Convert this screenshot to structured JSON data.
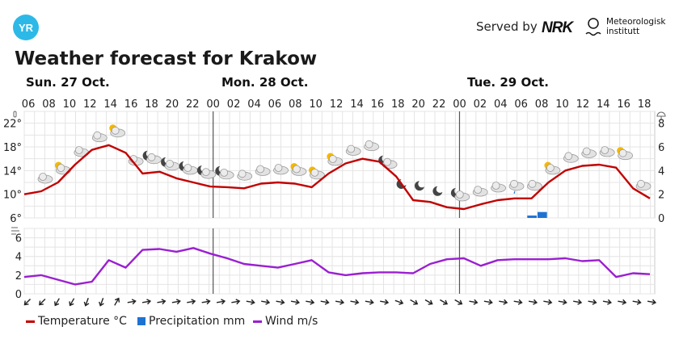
{
  "header": {
    "brand": "YR",
    "served_by": "Served by",
    "partner_logo": "NRK",
    "partner2_line1": "Meteorologisk",
    "partner2_line2": "institutt"
  },
  "title": "Weather forecast for Krakow",
  "days": [
    {
      "label": "Sun. 27 Oct."
    },
    {
      "label": "Mon. 28 Oct."
    },
    {
      "label": "Tue. 29 Oct."
    }
  ],
  "icons_meta": {
    "temperature_axis_icon": "thermometer-icon",
    "precip_axis_icon": "umbrella-icon",
    "wind_axis_icon": "wind-icon"
  },
  "legend": {
    "temperature": "Temperature °C",
    "precipitation": "Precipitation mm",
    "wind": "Wind m/s"
  },
  "colors": {
    "temperature": "#c20000",
    "precipitation": "#1e73d2",
    "wind": "#9a1fd1",
    "brand": "#2cb9e8"
  },
  "chart_data": {
    "type": "line",
    "x_labels": [
      "06",
      "08",
      "10",
      "12",
      "14",
      "16",
      "18",
      "20",
      "22",
      "00",
      "02",
      "04",
      "06",
      "08",
      "10",
      "12",
      "14",
      "16",
      "18",
      "20",
      "22",
      "00",
      "02",
      "04",
      "06",
      "08",
      "10",
      "12",
      "14",
      "16",
      "18"
    ],
    "temperature_axis": {
      "ticks": [
        "6°",
        "10°",
        "14°",
        "18°",
        "22°"
      ],
      "ylim": [
        6,
        24
      ]
    },
    "precip_axis": {
      "ticks": [
        "0",
        "2",
        "4",
        "6",
        "8"
      ],
      "ylim": [
        0,
        9
      ]
    },
    "wind_axis": {
      "ticks": [
        "0",
        "2",
        "4",
        "6"
      ],
      "ylim": [
        0,
        7
      ]
    },
    "temperature": [
      10.0,
      10.5,
      12.0,
      15.0,
      17.5,
      18.3,
      17.0,
      13.5,
      13.8,
      12.7,
      12.0,
      11.3,
      11.2,
      11.0,
      11.8,
      12.0,
      11.8,
      11.2,
      13.5,
      15.2,
      16.0,
      15.5,
      13.0,
      9.0,
      8.7,
      7.8,
      7.5,
      8.3,
      9.0,
      9.3,
      9.3
    ],
    "wind": [
      1.8,
      2.0,
      1.5,
      1.0,
      1.3,
      3.6,
      2.8,
      4.7,
      4.8,
      4.5,
      4.9,
      4.3,
      3.8,
      3.2,
      3.0,
      2.8,
      3.2,
      3.6,
      2.3,
      2.0,
      2.2,
      2.3,
      2.3,
      2.2,
      3.2,
      3.7,
      3.8,
      3.0,
      3.6,
      3.7,
      3.7
    ],
    "temperature_tail": [
      12.0,
      14.0,
      14.8,
      15.0,
      14.5,
      11.0,
      9.3
    ],
    "wind_tail": [
      3.7,
      3.8,
      3.5,
      3.6,
      1.8,
      2.2,
      2.1
    ],
    "precipitation": [
      {
        "hour_index": 49,
        "value": 0.2
      },
      {
        "hour_index": 50,
        "value": 0.5
      }
    ],
    "weather_symbols": [
      "cloud-icon",
      "partly-sunny-icon",
      "cloud-icon",
      "cloud-icon",
      "partly-sunny-icon",
      "cloud-icon",
      "night-cloud-icon",
      "night-cloud-icon",
      "night-cloud-icon",
      "night-cloud-icon",
      "night-cloud-icon",
      "cloud-icon",
      "cloud-icon",
      "cloud-icon",
      "partly-sunny-icon",
      "sunny-cloud-icon",
      "partly-sunny-icon",
      "cloud-icon",
      "cloud-icon",
      "night-cloud-icon",
      "moon-icon",
      "moon-icon",
      "moon-icon",
      "night-cloud-icon",
      "cloud-icon",
      "cloud-icon",
      "rain-cloud-icon",
      "cloud-icon",
      "partly-sunny-icon",
      "cloud-icon",
      "cloud-icon",
      "cloud-icon",
      "partly-sunny-icon",
      "cloud-icon"
    ],
    "wind_directions_deg": [
      225,
      225,
      210,
      210,
      200,
      200,
      30,
      80,
      80,
      80,
      80,
      80,
      80,
      80,
      80,
      100,
      100,
      100,
      100,
      100,
      100,
      100,
      100,
      100,
      100,
      110,
      120,
      120,
      120,
      120,
      100,
      100,
      100,
      100,
      100,
      100,
      100,
      100,
      100,
      100,
      100,
      100,
      100
    ]
  }
}
